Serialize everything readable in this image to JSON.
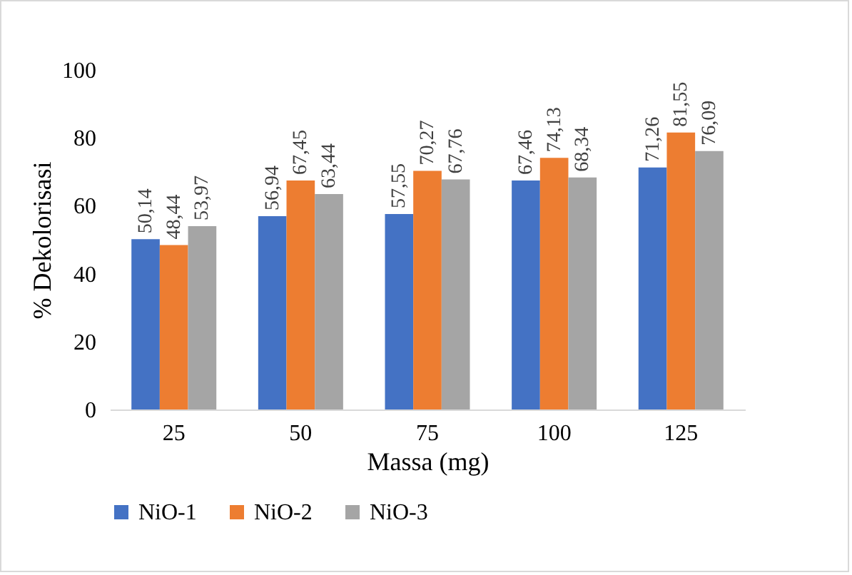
{
  "chart_data": {
    "type": "bar",
    "xlabel": "Massa (mg)",
    "ylabel": "% Dekolorisasi",
    "categories": [
      "25",
      "50",
      "75",
      "100",
      "125"
    ],
    "series": [
      {
        "name": "NiO-1",
        "color": "#4472c4",
        "values": [
          50.14,
          56.94,
          57.55,
          67.46,
          71.26
        ],
        "value_labels": [
          "50,14",
          "56,94",
          "57,55",
          "67,46",
          "71,26"
        ]
      },
      {
        "name": "NiO-2",
        "color": "#ed7d31",
        "values": [
          48.44,
          67.45,
          70.27,
          74.13,
          81.55
        ],
        "value_labels": [
          "48,44",
          "67,45",
          "70,27",
          "74,13",
          "81,55"
        ]
      },
      {
        "name": "NiO-3",
        "color": "#a5a5a5",
        "values": [
          53.97,
          63.44,
          67.76,
          68.34,
          76.09
        ],
        "value_labels": [
          "53,97",
          "63,44",
          "67,76",
          "68,34",
          "76,09"
        ]
      }
    ],
    "ylim": [
      0,
      100
    ],
    "yticks": [
      0,
      20,
      40,
      60,
      80,
      100
    ],
    "grid": false,
    "legend": "bottom"
  }
}
